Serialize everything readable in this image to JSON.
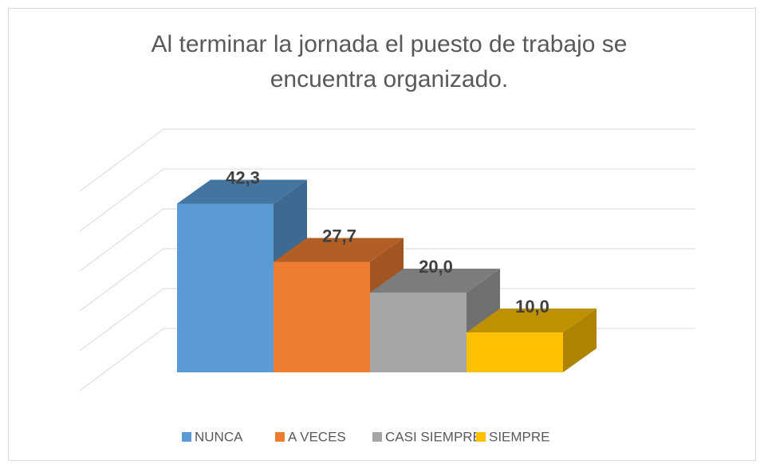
{
  "chart_data": {
    "type": "bar3d",
    "title": [
      "Al terminar la jornada el puesto de trabajo se",
      "encuentra organizado."
    ],
    "series": [
      {
        "name": "NUNCA",
        "color": "#5b9bd5",
        "values": [
          42.3
        ],
        "value_labels": [
          "42,3"
        ]
      },
      {
        "name": "A VECES",
        "color": "#ed7d31",
        "values": [
          27.7
        ],
        "value_labels": [
          "27,7"
        ]
      },
      {
        "name": "CASI SIEMPRE",
        "color": "#a5a5a5",
        "values": [
          20.0
        ],
        "value_labels": [
          "20,0"
        ]
      },
      {
        "name": "SIEMPRE",
        "color": "#ffc000",
        "values": [
          10.0
        ],
        "value_labels": [
          "10,0"
        ]
      }
    ],
    "ylim": [
      0,
      50
    ],
    "yticks": [
      0,
      10,
      20,
      30,
      40,
      50
    ],
    "grid": true,
    "legend": "bottom"
  }
}
